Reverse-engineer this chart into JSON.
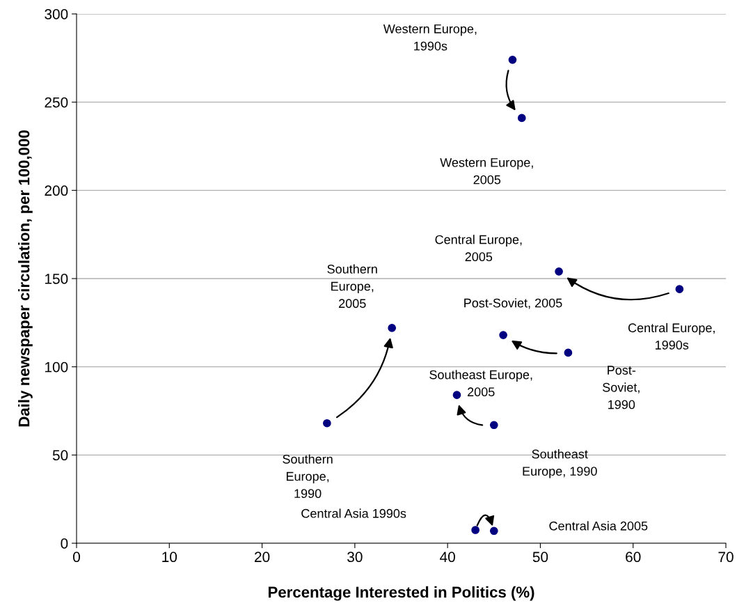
{
  "chart_data": {
    "type": "scatter",
    "xlabel": "Percentage Interested in Politics (%)",
    "ylabel": "Daily newspaper circulation, per 100,000",
    "x": [
      47,
      48,
      52,
      65,
      34,
      46,
      53,
      41,
      45,
      27,
      43,
      45
    ],
    "series": [
      {
        "color": "#000080",
        "values": [
          274,
          241,
          154,
          144,
          122,
          118,
          108,
          84,
          67,
          68,
          7.5,
          7
        ]
      }
    ],
    "xlim": [
      0,
      70
    ],
    "xticks": [
      0,
      10,
      20,
      30,
      40,
      50,
      60,
      70
    ],
    "ylim": [
      0,
      300
    ],
    "yticks": [
      0,
      50,
      100,
      150,
      200,
      250,
      300
    ],
    "grid": "y",
    "marker": "circle",
    "annotations": [
      "Western Europe,\n1990s",
      "Western Europe,\n2005",
      "Central Europe,\n2005",
      "Central Europe,\n1990s",
      "Southern\nEurope,\n2005",
      "Post-Soviet, 2005",
      "Post-\nSoviet,\n1990",
      "Southeast Europe,\n2005",
      "Southeast\nEurope, 1990",
      "Southern\nEurope,\n1990",
      "Central Asia 1990s",
      "Central Asia 2005"
    ]
  }
}
